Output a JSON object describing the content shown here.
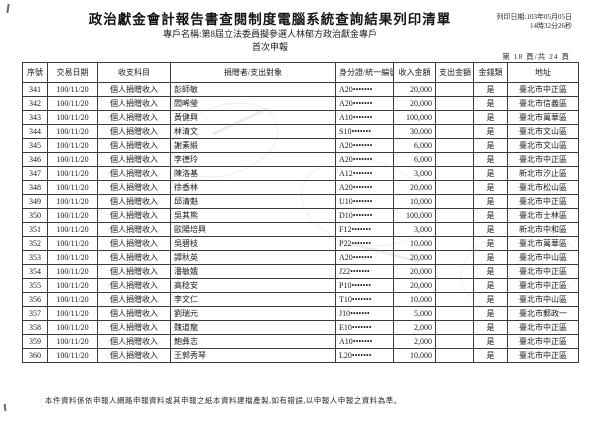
{
  "header": {
    "title": "政治獻金會計報告書查閱制度電腦系統查詢結果列印清單",
    "account_line": "專戶名稱:第8屆立法委員擬參選人林郁方政治獻金專戶",
    "report_stage": "首次申報",
    "print_date": "列印日期:103年05月05日",
    "print_time": "14時32分26秒",
    "page_indicator": "第 18 頁/共 24 頁"
  },
  "table": {
    "headers": [
      "序號",
      "交易日期",
      "收支科目",
      "捐贈者/支出對象",
      "身分證/統一編號",
      "收入金額",
      "支出金額",
      "金錢類",
      "地址"
    ],
    "rows": [
      [
        "341",
        "100/11/20",
        "個人捐贈收入",
        "彭師敏",
        "A20•••••••",
        "20,000",
        "",
        "是",
        "臺北市中正區"
      ],
      [
        "342",
        "100/11/20",
        "個人捐贈收入",
        "閻晞瑩",
        "A20•••••••",
        "20,000",
        "",
        "是",
        "臺北市信義區"
      ],
      [
        "343",
        "100/11/20",
        "個人捐贈收入",
        "黃健興",
        "A10•••••••",
        "100,000",
        "",
        "是",
        "臺北市萬華區"
      ],
      [
        "344",
        "100/11/20",
        "個人捐贈收入",
        "林清文",
        "S10•••••••",
        "30,000",
        "",
        "是",
        "臺北市文山區"
      ],
      [
        "345",
        "100/11/20",
        "個人捐贈收入",
        "謝素緞",
        "A20•••••••",
        "6,000",
        "",
        "是",
        "臺北市文山區"
      ],
      [
        "346",
        "100/11/20",
        "個人捐贈收入",
        "李德玲",
        "A20•••••••",
        "6,000",
        "",
        "是",
        "臺北市中正區"
      ],
      [
        "347",
        "100/11/20",
        "個人捐贈收入",
        "陳洛基",
        "A12•••••••",
        "3,000",
        "",
        "是",
        "新北市汐止區"
      ],
      [
        "348",
        "100/11/20",
        "個人捐贈收入",
        "徐香林",
        "A20•••••••",
        "20,000",
        "",
        "是",
        "臺北市松山區"
      ],
      [
        "349",
        "100/11/20",
        "個人捐贈收入",
        "邱清魁",
        "U10•••••••",
        "10,000",
        "",
        "是",
        "臺北市中正區"
      ],
      [
        "350",
        "100/11/20",
        "個人捐贈收入",
        "吳其熊",
        "D10•••••••",
        "100,000",
        "",
        "是",
        "臺北市士林區"
      ],
      [
        "351",
        "100/11/20",
        "個人捐贈收入",
        "歐陽培興",
        "F12•••••••",
        "3,000",
        "",
        "是",
        "新北市中和區"
      ],
      [
        "352",
        "100/11/20",
        "個人捐贈收入",
        "吳碧枝",
        "P22•••••••",
        "10,000",
        "",
        "是",
        "臺北市萬華區"
      ],
      [
        "353",
        "100/11/20",
        "個人捐贈收入",
        "譚秋英",
        "A20•••••••",
        "20,000",
        "",
        "是",
        "臺北市中山區"
      ],
      [
        "354",
        "100/11/20",
        "個人捐贈收入",
        "潘敏娥",
        "J22•••••••",
        "20,000",
        "",
        "是",
        "臺北市中正區"
      ],
      [
        "355",
        "100/11/20",
        "個人捐贈收入",
        "高稔安",
        "P10•••••••",
        "20,000",
        "",
        "是",
        "臺北市中正區"
      ],
      [
        "356",
        "100/11/20",
        "個人捐贈收入",
        "李文仁",
        "T10•••••••",
        "10,000",
        "",
        "是",
        "臺北市中山區"
      ],
      [
        "357",
        "100/11/20",
        "個人捐贈收入",
        "劉瑞元",
        "J10•••••••",
        "5,000",
        "",
        "是",
        "臺北市郵政一"
      ],
      [
        "358",
        "100/11/20",
        "個人捐贈收入",
        "魏道龍",
        "E10•••••••",
        "2,000",
        "",
        "是",
        "臺北市中正區"
      ],
      [
        "359",
        "100/11/20",
        "個人捐贈收入",
        "鮑彝志",
        "A10•••••••",
        "2,000",
        "",
        "是",
        "臺北市中正區"
      ],
      [
        "360",
        "100/11/20",
        "個人捐贈收入",
        "王郭秀琴",
        "L20•••••••",
        "10,000",
        "",
        "是",
        "臺北市中正區"
      ]
    ]
  },
  "footer": {
    "note": "本件資料係依申報人網路申報資料或其申報之紙本資料建檔產製,如有錯誤,以申報人申報之資料為準。"
  }
}
